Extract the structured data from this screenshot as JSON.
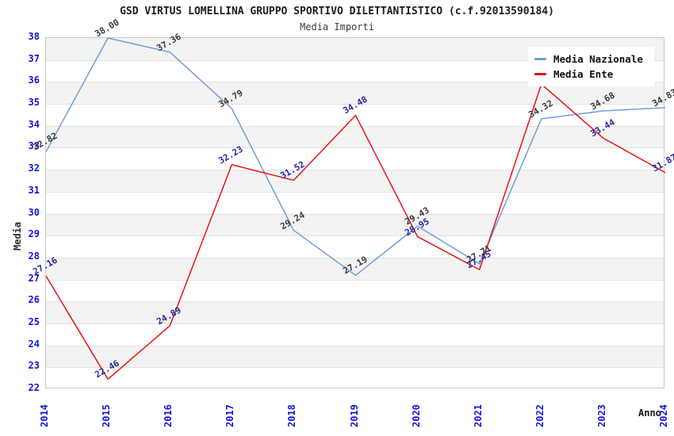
{
  "chart_data": {
    "type": "line",
    "title": "GSD VIRTUS LOMELLINA GRUPPO SPORTIVO DILETTANTISTICO (c.f.92013590184)",
    "subtitle": "Media Importi",
    "xlabel": "Anno",
    "ylabel": "Media",
    "x": [
      "2014",
      "2015",
      "2016",
      "2017",
      "2018",
      "2019",
      "2020",
      "2021",
      "2022",
      "2023",
      "2024"
    ],
    "ylim": [
      22,
      38
    ],
    "yticks": [
      22,
      23,
      24,
      25,
      26,
      27,
      28,
      29,
      30,
      31,
      32,
      33,
      34,
      35,
      36,
      37,
      38
    ],
    "grid": "horizontal-only",
    "striped_bands": true,
    "legend_position": "top-right",
    "series": [
      {
        "name": "Media Nazionale",
        "color": "#6e9fd9",
        "label_color": "#3a3a3a",
        "values": [
          32.82,
          38.0,
          37.36,
          34.79,
          29.24,
          27.19,
          29.43,
          27.71,
          34.32,
          34.68,
          34.83
        ],
        "point_labels": [
          "32.82",
          "38.00",
          "37.36",
          "34.79",
          "29.24",
          "27.19",
          "29.43",
          "27.71",
          "34.32",
          "34.68",
          "34.83"
        ]
      },
      {
        "name": "Media Ente",
        "color": "#e81414",
        "label_color": "#2626a6",
        "values": [
          27.16,
          22.46,
          24.89,
          32.23,
          31.52,
          34.48,
          28.95,
          27.45,
          35.9,
          33.44,
          31.87
        ],
        "point_labels": [
          "27.16",
          "22.46",
          "24.89",
          "32.23",
          "31.52",
          "34.48",
          "28.95",
          "27.45",
          "",
          "33.44",
          "31.87"
        ]
      }
    ],
    "colors": {
      "tick_label_color": "#1414dd",
      "grid_color": "#e2e2e2",
      "band_color": "#f3f3f3",
      "plot_border_color": "#c9c9c9",
      "background": "#ffffff",
      "legend_background": "#ffffff",
      "title_color": "#1c1c1c"
    }
  }
}
